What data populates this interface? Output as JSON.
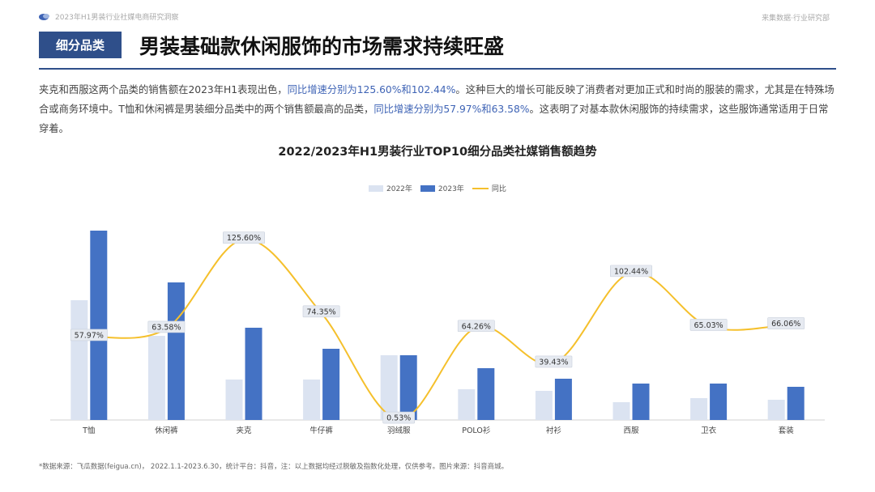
{
  "header": {
    "report_title": "2023年H1男装行业社媒电商研究洞察",
    "brand": "来集数据·行业研究部"
  },
  "section": {
    "tag": "细分品类",
    "headline": "男装基础款休闲服饰的市场需求持续旺盛"
  },
  "description": {
    "p1": "夹克和西服这两个品类的销售额在2023年H1表现出色，",
    "h1": "同比增速分别为125.60%和102.44%",
    "p2": "。这种巨大的增长可能反映了消费者对更加正式和时尚的服装的需求，尤其是在特殊场合或商务环境中。T恤和休闲裤是男装细分品类中的两个销售额最高的品类，",
    "h2": "同比增速分别为57.97%和63.58%",
    "p3": "。这表明了对基本款休闲服饰的持续需求，这些服饰通常适用于日常穿着。"
  },
  "footnote": "*数据来源：飞瓜数据(feigua.cn)， 2022.1.1-2023.6.30，统计平台：抖音，注：以上数据均经过脱敏及指数化处理，仅供参考。图片来源：抖音商城。",
  "colors": {
    "bar_2022": "#dbe3f1",
    "bar_2023": "#4472c4",
    "line": "#f5c02c",
    "accent": "#2f4f8a"
  },
  "chart_data": {
    "type": "bar",
    "title": "2022/2023年H1男装行业TOP10细分品类社媒销售额趋势",
    "categories": [
      "T恤",
      "休闲裤",
      "夹克",
      "牛仔裤",
      "羽绒服",
      "POLO衫",
      "衬衫",
      "西服",
      "卫衣",
      "套装"
    ],
    "series": [
      {
        "name": "2022年",
        "type": "bar",
        "values": [
          148,
          104,
          50,
          50,
          80,
          38,
          36,
          22,
          27,
          25
        ]
      },
      {
        "name": "2023年",
        "type": "bar",
        "values": [
          234,
          170,
          114,
          88,
          80,
          64,
          51,
          45,
          45,
          41
        ]
      },
      {
        "name": "同比",
        "type": "line",
        "values": [
          57.97,
          63.58,
          125.6,
          74.35,
          0.53,
          64.26,
          39.43,
          102.44,
          65.03,
          66.06
        ],
        "labels": [
          "57.97%",
          "63.58%",
          "125.60%",
          "74.35%",
          "0.53%",
          "64.26%",
          "39.43%",
          "102.44%",
          "65.03%",
          "66.06%"
        ]
      }
    ],
    "ylim_bar": [
      0,
      240
    ],
    "ylim_line": [
      0,
      135
    ],
    "legend_position": "top-center",
    "grid": false
  }
}
